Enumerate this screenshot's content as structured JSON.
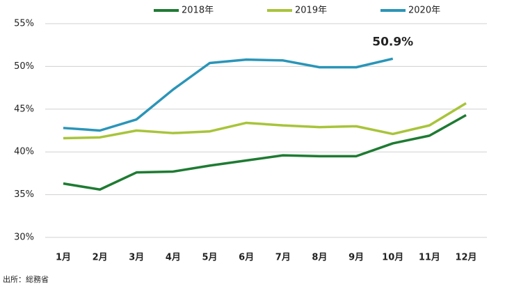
{
  "chart_data": {
    "type": "line",
    "categories": [
      "1月",
      "2月",
      "3月",
      "4月",
      "5月",
      "6月",
      "7月",
      "8月",
      "9月",
      "10月",
      "11月",
      "12月"
    ],
    "series": [
      {
        "name": "2018年",
        "color": "#1e7b32",
        "values": [
          36.3,
          35.6,
          37.6,
          37.7,
          38.4,
          39.0,
          39.6,
          39.5,
          39.5,
          41.0,
          41.9,
          44.3
        ]
      },
      {
        "name": "2019年",
        "color": "#a8c43a",
        "values": [
          41.6,
          41.7,
          42.5,
          42.2,
          42.4,
          43.4,
          43.1,
          42.9,
          43.0,
          42.1,
          43.1,
          45.7
        ]
      },
      {
        "name": "2020年",
        "color": "#2a95b8",
        "values": [
          42.8,
          42.5,
          43.8,
          47.3,
          50.4,
          50.8,
          50.7,
          49.9,
          49.9,
          50.9,
          null,
          null
        ],
        "value_labels": [
          null,
          null,
          null,
          null,
          null,
          null,
          null,
          null,
          null,
          "50.9%",
          null,
          null
        ]
      }
    ],
    "ylim": [
      30,
      55
    ],
    "yticks": [
      {
        "value": 30,
        "label": "30%"
      },
      {
        "value": 35,
        "label": "35%"
      },
      {
        "value": 40,
        "label": "40%"
      },
      {
        "value": 45,
        "label": "45%"
      },
      {
        "value": 50,
        "label": "50%"
      },
      {
        "value": 55,
        "label": "55%"
      }
    ],
    "grid": true,
    "legend": "top-right",
    "source": "出所：総務省"
  }
}
